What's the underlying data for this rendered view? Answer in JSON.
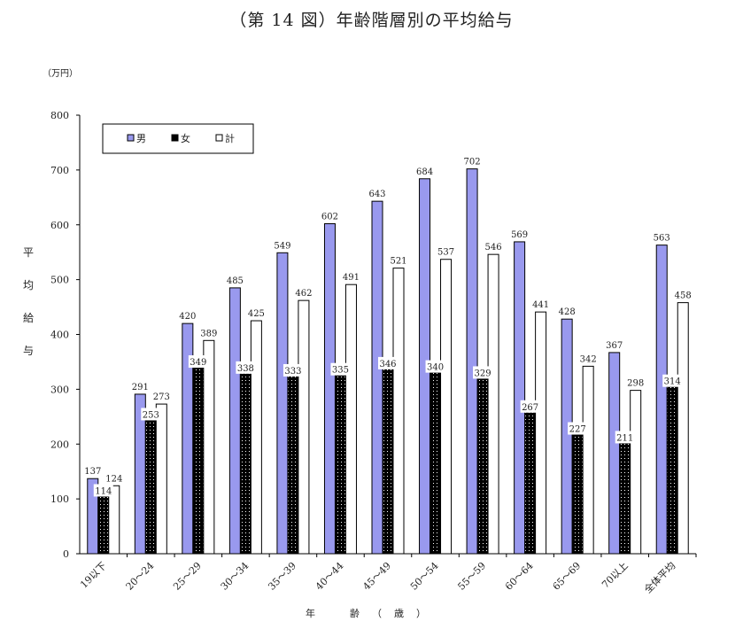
{
  "title": "（第 14 図）年齢階層別の平均給与",
  "unit_label": "（万円）",
  "colors": {
    "male": "#9999ee",
    "female": "#000000",
    "total": "#ffffff",
    "axis": "#000000"
  },
  "chart_data": {
    "type": "bar",
    "title": "（第 14 図）年齢階層別の平均給与",
    "ylabel": "平均給与",
    "xlabel": "年　齢（歳）",
    "ylim": [
      0,
      800
    ],
    "yticks": [
      0,
      100,
      200,
      300,
      400,
      500,
      600,
      700,
      800
    ],
    "legend_position": "top-left",
    "grid": false,
    "categories": [
      "19以下",
      "20～24",
      "25～29",
      "30～34",
      "35～39",
      "40～44",
      "45～49",
      "50～54",
      "55～59",
      "60～64",
      "65～69",
      "70以上",
      "全体平均"
    ],
    "series": [
      {
        "name": "男",
        "values": [
          137,
          291,
          420,
          485,
          549,
          602,
          643,
          684,
          702,
          569,
          428,
          367,
          563
        ]
      },
      {
        "name": "女",
        "values": [
          114,
          253,
          349,
          338,
          333,
          335,
          346,
          340,
          329,
          267,
          227,
          211,
          314
        ]
      },
      {
        "name": "計",
        "values": [
          124,
          273,
          389,
          425,
          462,
          491,
          521,
          537,
          546,
          441,
          342,
          298,
          458
        ]
      }
    ]
  }
}
